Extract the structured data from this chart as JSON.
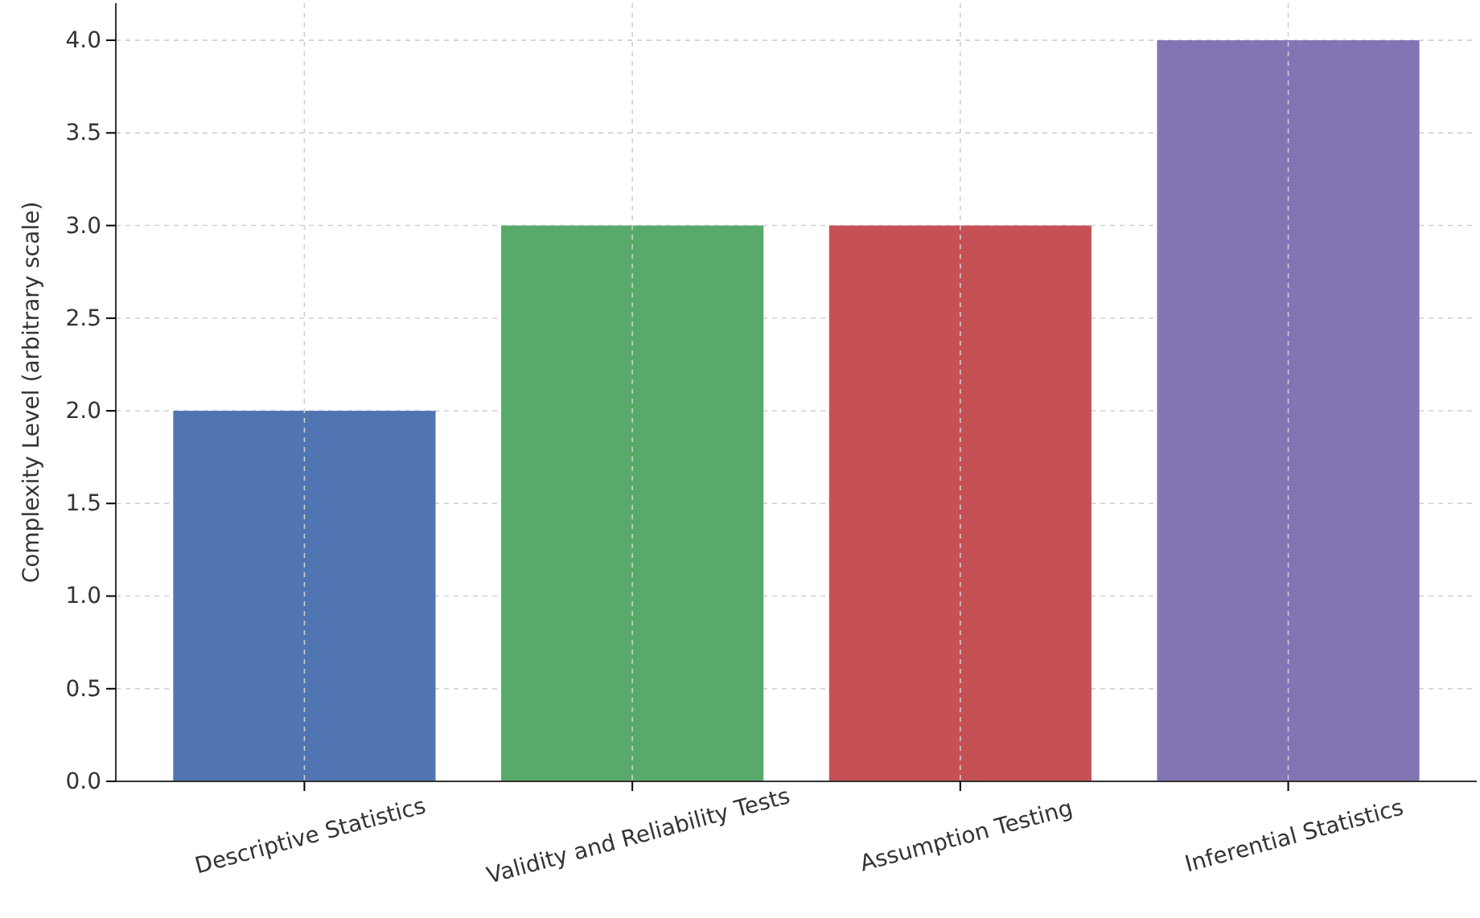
{
  "chart_data": {
    "type": "bar",
    "ylabel": "Complexity Level (arbitrary scale)",
    "categories": [
      "Descriptive Statistics",
      "Validity and Reliability Tests",
      "Assumption Testing",
      "Inferential Statistics"
    ],
    "values": [
      2,
      3,
      3,
      4
    ],
    "colors": [
      "#4c72b0",
      "#55a868",
      "#c44e52",
      "#8172b2"
    ],
    "ylim": [
      0,
      4.2
    ],
    "yticks": [
      {
        "value": 0,
        "label": "0.0"
      },
      {
        "value": 0.5,
        "label": "0.5"
      },
      {
        "value": 1,
        "label": "1.0"
      },
      {
        "value": 1.5,
        "label": "1.5"
      },
      {
        "value": 2,
        "label": "2.0"
      },
      {
        "value": 2.5,
        "label": "2.5"
      },
      {
        "value": 3,
        "label": "3.0"
      },
      {
        "value": 3.5,
        "label": "3.5"
      },
      {
        "value": 4,
        "label": "4.0"
      }
    ],
    "grid": true
  }
}
